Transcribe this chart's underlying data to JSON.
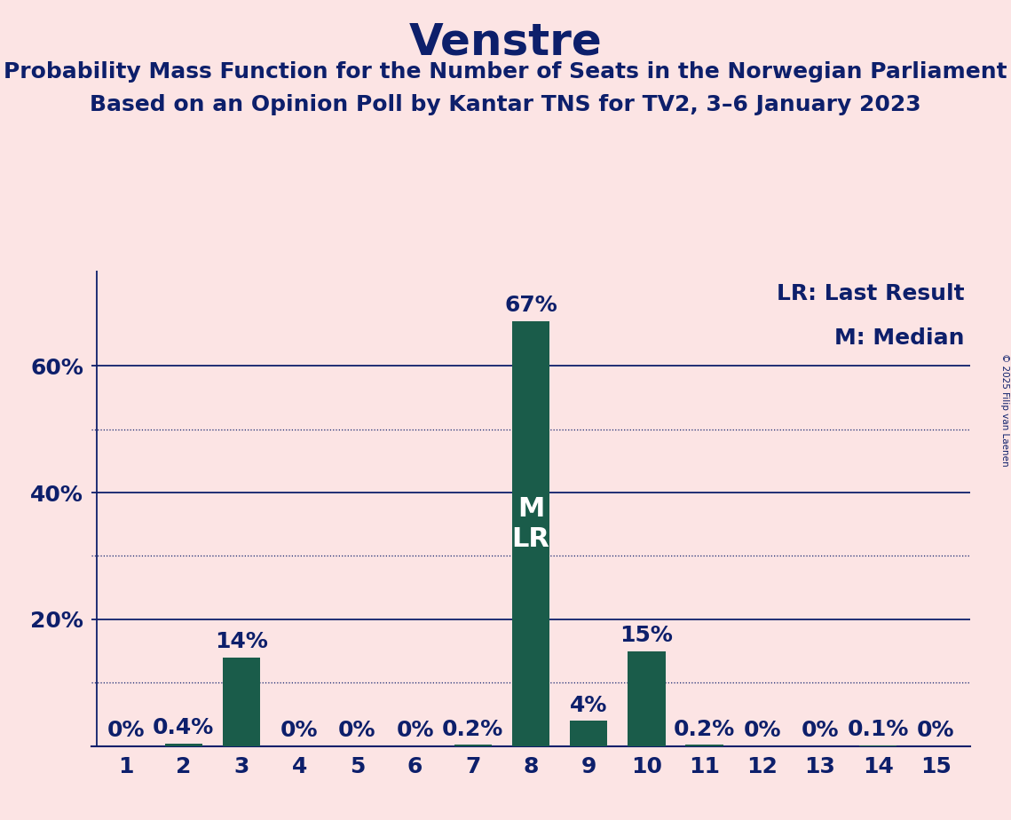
{
  "title": "Venstre",
  "subtitle1": "Probability Mass Function for the Number of Seats in the Norwegian Parliament",
  "subtitle2": "Based on an Opinion Poll by Kantar TNS for TV2, 3–6 January 2023",
  "copyright": "© 2025 Filip van Laenen",
  "categories": [
    1,
    2,
    3,
    4,
    5,
    6,
    7,
    8,
    9,
    10,
    11,
    12,
    13,
    14,
    15
  ],
  "values": [
    0.0,
    0.4,
    14.0,
    0.0,
    0.0,
    0.0,
    0.2,
    67.0,
    4.0,
    15.0,
    0.2,
    0.0,
    0.0,
    0.1,
    0.0
  ],
  "labels": [
    "0%",
    "0.4%",
    "14%",
    "0%",
    "0%",
    "0%",
    "0.2%",
    "67%",
    "4%",
    "15%",
    "0.2%",
    "0%",
    "0%",
    "0.1%",
    "0%"
  ],
  "bar_color": "#1a5c4a",
  "background_color": "#fce4e4",
  "text_color": "#0d1f6b",
  "white_text": "#ffffff",
  "legend_lr": "LR: Last Result",
  "legend_m": "M: Median",
  "ylim": [
    0,
    75
  ],
  "solid_gridlines": [
    20,
    40,
    60
  ],
  "dotted_gridlines": [
    10,
    30,
    50
  ],
  "ytick_labels": [
    "20%",
    "40%",
    "60%"
  ],
  "bar_width": 0.65,
  "title_fontsize": 36,
  "subtitle_fontsize": 18,
  "tick_fontsize": 18,
  "legend_fontsize": 18,
  "annotation_fontsize": 18
}
